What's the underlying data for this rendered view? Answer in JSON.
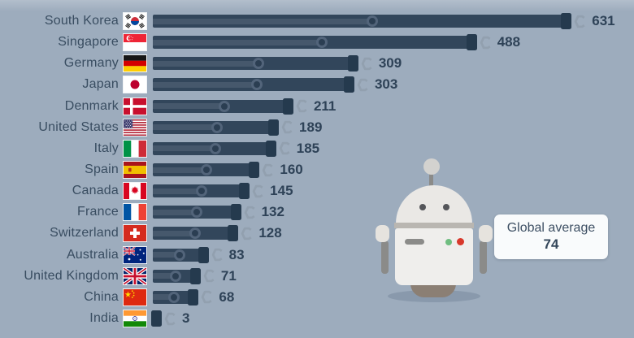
{
  "chart_data": {
    "type": "bar",
    "orientation": "horizontal",
    "title": "",
    "unit_icon": "gear-icon",
    "categories": [
      "South Korea",
      "Singapore",
      "Germany",
      "Japan",
      "Denmark",
      "United States",
      "Italy",
      "Spain",
      "Canada",
      "France",
      "Switzerland",
      "Australia",
      "United Kingdom",
      "China",
      "India"
    ],
    "values": [
      631,
      488,
      309,
      303,
      211,
      189,
      185,
      160,
      145,
      132,
      128,
      83,
      71,
      68,
      3
    ],
    "flags": [
      "kr",
      "sg",
      "de",
      "jp",
      "dk",
      "us",
      "it",
      "es",
      "ca",
      "fr",
      "ch",
      "au",
      "gb",
      "cn",
      "in"
    ],
    "xlim": [
      0,
      650
    ],
    "grid": false,
    "legend": "none",
    "annotation": {
      "label": "Global average",
      "value": "74"
    }
  },
  "colors": {
    "background": "#9dacbd",
    "bar": "#32465b",
    "bar_rod": "#46586c",
    "bar_cap": "#253a4e",
    "ring_outline": "#52647a",
    "label_text": "#394d61",
    "value_text": "#2e4257",
    "gear_icon": "#92a0af",
    "bubble_background": "#f9fbfc",
    "robot_body": "#efeeec",
    "robot_dark": "#8b8b89",
    "indicator_green": "#6fbd80",
    "indicator_red": "#d8382b"
  }
}
